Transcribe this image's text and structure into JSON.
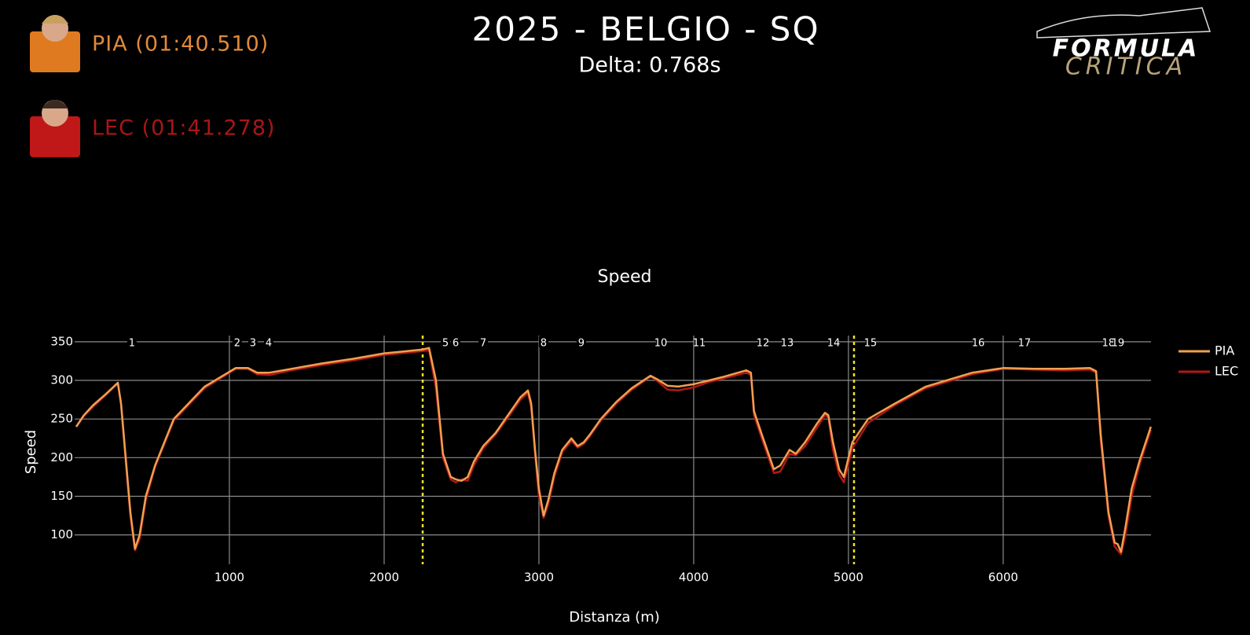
{
  "header": {
    "title": "2025 - BELGIO - SQ",
    "subtitle": "Delta: 0.768s",
    "drivers": [
      {
        "label": "PIA (01:40.510)",
        "color": "#e08a3a"
      },
      {
        "label": "LEC (01:41.278)",
        "color": "#a81616"
      }
    ],
    "logo": [
      "FORMULA",
      "CRITICA"
    ]
  },
  "chart_data": {
    "type": "line",
    "title": "Speed",
    "x_label": "Distanza (m)",
    "y_label": "Speed",
    "xlim": [
      0,
      6955
    ],
    "ylim": [
      62,
      358
    ],
    "xticks": [
      1000,
      2000,
      3000,
      4000,
      5000,
      6000
    ],
    "yticks": [
      100,
      150,
      200,
      250,
      300,
      350
    ],
    "grid": true,
    "legend": "outside-right",
    "x": [
      10,
      60,
      120,
      200,
      279,
      300,
      330,
      360,
      390,
      420,
      460,
      520,
      640,
      840,
      1040,
      1120,
      1180,
      1260,
      1400,
      1600,
      1800,
      2000,
      2249,
      2290,
      2335,
      2380,
      2430,
      2462,
      2500,
      2540,
      2580,
      2640,
      2720,
      2800,
      2880,
      2929,
      2950,
      2975,
      3000,
      3030,
      3060,
      3100,
      3150,
      3210,
      3250,
      3290,
      3330,
      3400,
      3500,
      3600,
      3721,
      3760,
      3832,
      3900,
      4000,
      4100,
      4200,
      4340,
      4370,
      4390,
      4440,
      4518,
      4560,
      4619,
      4660,
      4720,
      4800,
      4848,
      4870,
      4900,
      4940,
      4970,
      5025,
      5127,
      5300,
      5500,
      5800,
      6000,
      6200,
      6400,
      6560,
      6600,
      6630,
      6680,
      6720,
      6740,
      6761,
      6790,
      6830,
      6880,
      6954
    ],
    "series": [
      {
        "name": "PIA",
        "color": "#f0a050",
        "values": [
          240,
          255,
          268,
          282,
          297,
          270,
          200,
          130,
          82,
          100,
          150,
          190,
          250,
          292,
          316,
          316,
          310,
          310,
          315,
          322,
          328,
          335,
          340,
          342,
          300,
          205,
          175,
          172,
          170,
          175,
          195,
          215,
          232,
          255,
          278,
          287,
          270,
          210,
          160,
          125,
          145,
          180,
          210,
          225,
          215,
          220,
          230,
          250,
          272,
          290,
          306,
          302,
          293,
          292,
          295,
          300,
          305,
          313,
          310,
          260,
          230,
          185,
          190,
          210,
          205,
          220,
          245,
          258,
          255,
          220,
          185,
          175,
          220,
          250,
          270,
          292,
          310,
          316,
          315,
          315,
          316,
          312,
          230,
          130,
          90,
          88,
          78,
          110,
          160,
          195,
          240
        ]
      },
      {
        "name": "LEC",
        "color": "#b01818",
        "values": [
          240,
          254,
          266,
          281,
          296,
          268,
          195,
          125,
          80,
          95,
          145,
          188,
          248,
          290,
          315,
          315,
          308,
          307,
          313,
          320,
          326,
          333,
          338,
          339,
          290,
          200,
          172,
          168,
          172,
          170,
          190,
          212,
          230,
          252,
          275,
          284,
          265,
          205,
          150,
          122,
          140,
          175,
          207,
          222,
          213,
          218,
          228,
          248,
          270,
          288,
          305,
          300,
          288,
          287,
          291,
          298,
          303,
          310,
          307,
          255,
          225,
          180,
          182,
          205,
          203,
          215,
          240,
          255,
          252,
          210,
          178,
          168,
          212,
          245,
          268,
          290,
          308,
          315,
          314,
          313,
          314,
          310,
          222,
          125,
          85,
          80,
          75,
          100,
          150,
          190,
          236
        ]
      }
    ],
    "corners": {
      "labels": [
        "1",
        "2",
        "3",
        "4",
        "5",
        "6",
        "7",
        "8",
        "9",
        "10",
        "11",
        "12",
        "13",
        "14",
        "15",
        "16",
        "17",
        "18",
        "19"
      ],
      "x": [
        370,
        1050,
        1152,
        1254,
        2396,
        2462,
        2640,
        3030,
        3274,
        3787,
        4036,
        4447,
        4604,
        4904,
        5142,
        5838,
        6137,
        6680,
        6741
      ]
    },
    "sector_lines": [
      2249,
      5036
    ],
    "sector_color": "#f2e22a"
  }
}
